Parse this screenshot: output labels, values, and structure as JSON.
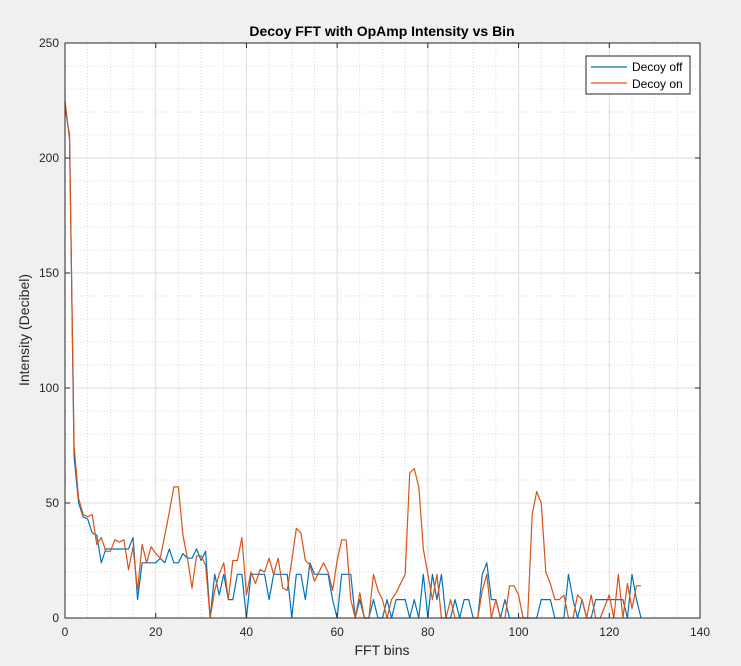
{
  "chart_data": {
    "type": "line",
    "title": "Decoy FFT with OpAmp Intensity vs Bin",
    "xlabel": "FFT bins",
    "ylabel": "Intensity (Decibel)",
    "xlim": [
      0,
      140
    ],
    "ylim": [
      0,
      250
    ],
    "xticks": [
      0,
      20,
      40,
      60,
      80,
      100,
      120,
      140
    ],
    "yticks": [
      0,
      50,
      100,
      150,
      200,
      250
    ],
    "grid": "major and minor",
    "legend_position": "top-right",
    "series": [
      {
        "name": "Decoy off",
        "color": "#0072bd",
        "x": [
          0,
          1,
          2,
          3,
          4,
          5,
          6,
          7,
          8,
          9,
          10,
          11,
          12,
          13,
          14,
          15,
          16,
          17,
          18,
          19,
          20,
          21,
          22,
          23,
          24,
          25,
          26,
          27,
          28,
          29,
          30,
          31,
          32,
          33,
          34,
          35,
          36,
          37,
          38,
          39,
          40,
          41,
          42,
          43,
          44,
          45,
          46,
          47,
          48,
          49,
          50,
          51,
          52,
          53,
          54,
          55,
          56,
          57,
          58,
          59,
          60,
          61,
          62,
          63,
          64,
          65,
          66,
          67,
          68,
          69,
          70,
          71,
          72,
          73,
          74,
          75,
          76,
          77,
          78,
          79,
          80,
          81,
          82,
          83,
          84,
          85,
          86,
          87,
          88,
          89,
          90,
          91,
          92,
          93,
          94,
          95,
          96,
          97,
          98,
          99,
          100,
          101,
          102,
          103,
          104,
          105,
          106,
          107,
          108,
          109,
          110,
          111,
          112,
          113,
          114,
          115,
          116,
          117,
          118,
          119,
          120,
          121,
          122,
          123,
          124,
          125,
          126,
          127
        ],
        "values": [
          222,
          210,
          70,
          50,
          44,
          43,
          37,
          36,
          24,
          30,
          30,
          30,
          30,
          30,
          30,
          35,
          8,
          24,
          24,
          24,
          24,
          26,
          24,
          30,
          24,
          24,
          28,
          26,
          26,
          30,
          25,
          29,
          0,
          19,
          10,
          19,
          8,
          8,
          19,
          19,
          0,
          19,
          19,
          19,
          19,
          8,
          19,
          19,
          19,
          19,
          0,
          19,
          19,
          8,
          24,
          19,
          19,
          19,
          19,
          8,
          0,
          19,
          19,
          19,
          0,
          8,
          0,
          0,
          8,
          0,
          0,
          8,
          0,
          8,
          8,
          8,
          0,
          8,
          0,
          19,
          0,
          19,
          8,
          19,
          0,
          0,
          8,
          0,
          8,
          8,
          0,
          0,
          19,
          24,
          8,
          8,
          0,
          8,
          0,
          0,
          0,
          0,
          0,
          0,
          0,
          8,
          8,
          8,
          0,
          0,
          0,
          19,
          8,
          0,
          8,
          0,
          0,
          8,
          8,
          8,
          8,
          8,
          8,
          8,
          0,
          19,
          8,
          0
        ]
      },
      {
        "name": "Decoy on",
        "color": "#d95319",
        "x": [
          0,
          1,
          2,
          3,
          4,
          5,
          6,
          7,
          8,
          9,
          10,
          11,
          12,
          13,
          14,
          15,
          16,
          17,
          18,
          19,
          20,
          21,
          22,
          23,
          24,
          25,
          26,
          27,
          28,
          29,
          30,
          31,
          32,
          33,
          34,
          35,
          36,
          37,
          38,
          39,
          40,
          41,
          42,
          43,
          44,
          45,
          46,
          47,
          48,
          49,
          50,
          51,
          52,
          53,
          54,
          55,
          56,
          57,
          58,
          59,
          60,
          61,
          62,
          63,
          64,
          65,
          66,
          67,
          68,
          69,
          70,
          71,
          72,
          73,
          74,
          75,
          76,
          77,
          78,
          79,
          80,
          81,
          82,
          83,
          84,
          85,
          86,
          87,
          88,
          89,
          90,
          91,
          92,
          93,
          94,
          95,
          96,
          97,
          98,
          99,
          100,
          101,
          102,
          103,
          104,
          105,
          106,
          107,
          108,
          109,
          110,
          111,
          112,
          113,
          114,
          115,
          116,
          117,
          118,
          119,
          120,
          121,
          122,
          123,
          124,
          125,
          126,
          127
        ],
        "values": [
          225,
          208,
          75,
          52,
          45,
          44,
          45,
          32,
          35,
          29,
          29,
          34,
          33,
          34,
          21,
          31,
          12,
          32,
          24,
          31,
          28,
          26,
          36,
          46,
          57,
          57,
          36,
          26,
          13,
          27,
          27,
          23,
          0,
          12,
          19,
          24,
          8,
          25,
          25,
          35,
          10,
          20,
          15,
          21,
          20,
          26,
          19,
          26,
          13,
          12,
          25,
          39,
          37,
          25,
          23,
          16,
          20,
          24,
          20,
          12,
          25,
          34,
          34,
          8,
          0,
          11,
          0,
          0,
          19,
          12,
          8,
          0,
          8,
          11,
          15,
          19,
          63,
          65,
          57,
          30,
          19,
          8,
          19,
          0,
          0,
          8,
          0,
          0,
          0,
          0,
          0,
          0,
          12,
          19,
          0,
          8,
          0,
          0,
          14,
          14,
          10,
          0,
          0,
          45,
          55,
          50,
          20,
          15,
          8,
          8,
          10,
          0,
          0,
          10,
          8,
          0,
          10,
          0,
          0,
          5,
          10,
          0,
          19,
          0,
          15,
          4,
          14,
          14
        ]
      }
    ]
  }
}
